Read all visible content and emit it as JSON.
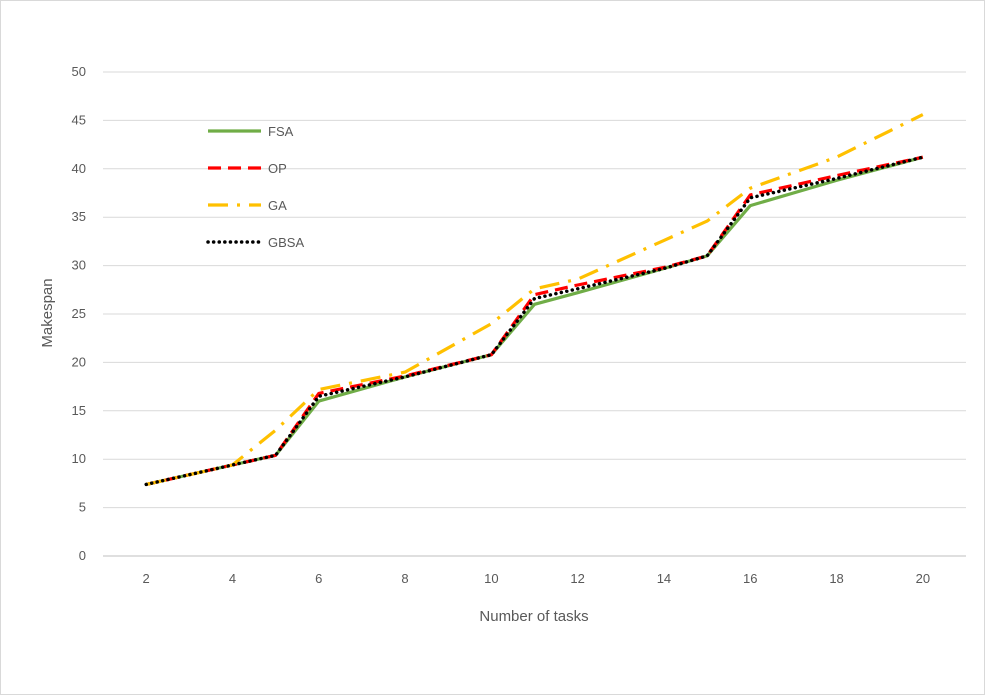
{
  "chart_data": {
    "type": "line",
    "title": "",
    "xlabel": "Number of tasks",
    "ylabel": "Makespan",
    "x": [
      2,
      4,
      5,
      6,
      8,
      10,
      11,
      12,
      14,
      15,
      16,
      18,
      20
    ],
    "xticks": [
      2,
      4,
      6,
      8,
      10,
      12,
      14,
      16,
      18,
      20
    ],
    "xlim": [
      2,
      20
    ],
    "ylim": [
      0,
      50
    ],
    "yticks": [
      0,
      5,
      10,
      15,
      20,
      25,
      30,
      35,
      40,
      45,
      50
    ],
    "grid": "horizontal",
    "legend": "upper-left inside plot",
    "series": [
      {
        "name": "FSA",
        "color": "#70ad47",
        "dash": "solid",
        "values": [
          7.4,
          9.4,
          10.4,
          16.0,
          18.5,
          20.8,
          26.0,
          27.2,
          29.7,
          31.0,
          36.2,
          38.8,
          41.2
        ]
      },
      {
        "name": "OP",
        "color": "#ff0000",
        "dash": "dashed",
        "values": [
          7.4,
          9.4,
          10.4,
          16.8,
          18.6,
          20.8,
          27.0,
          28.0,
          29.8,
          31.0,
          37.3,
          39.3,
          41.2
        ]
      },
      {
        "name": "GA",
        "color": "#ffc000",
        "dash": "dash-dot",
        "values": [
          7.4,
          9.4,
          13.0,
          17.2,
          19.0,
          24.0,
          27.6,
          28.6,
          32.6,
          34.6,
          38.0,
          41.2,
          45.6
        ]
      },
      {
        "name": "GBSA",
        "color": "#000000",
        "dash": "dotted",
        "values": [
          7.4,
          9.4,
          10.4,
          16.5,
          18.5,
          20.8,
          26.6,
          27.6,
          29.7,
          31.0,
          37.0,
          39.0,
          41.2
        ]
      }
    ]
  }
}
